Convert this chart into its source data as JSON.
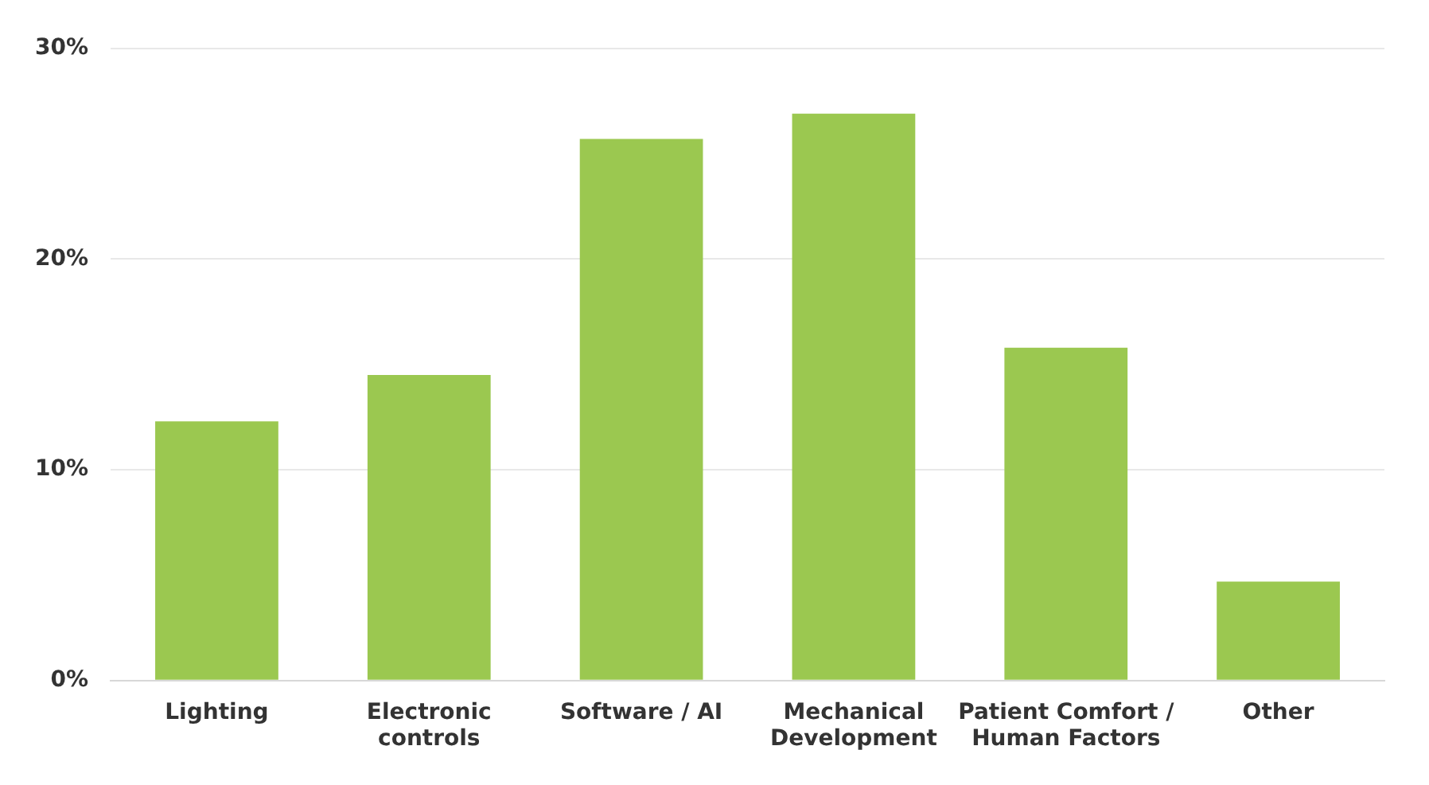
{
  "chart_data": {
    "type": "bar",
    "categories": [
      "Lighting",
      "Electronic controls",
      "Software / AI",
      "Mechanical Development",
      "Patient Comfort / Human Factors",
      "Other"
    ],
    "values": [
      12.3,
      14.5,
      25.7,
      26.9,
      15.8,
      4.7
    ],
    "color": "#9bc850",
    "ylim": [
      0,
      30
    ],
    "yticks": [
      {
        "value": 0,
        "label": "0%"
      },
      {
        "value": 10,
        "label": "10%"
      },
      {
        "value": 20,
        "label": "20%"
      },
      {
        "value": 30,
        "label": "30%"
      }
    ],
    "grid": "y",
    "legend": false
  }
}
